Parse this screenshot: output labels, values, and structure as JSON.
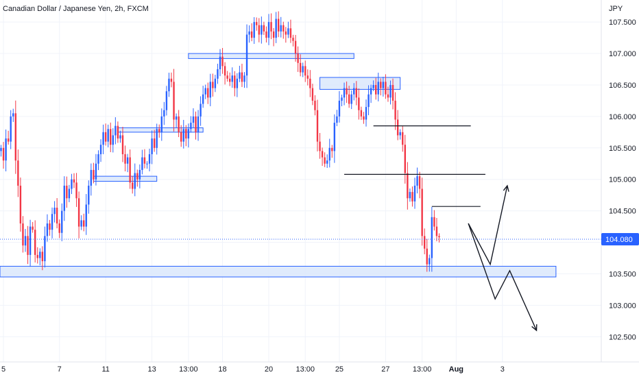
{
  "header": {
    "title": "Canadian Dollar / Japanese Yen, 2h, FXCM",
    "currency": "JPY"
  },
  "colors": {
    "up": "#2962ff",
    "down": "#f23645",
    "zone_fill": "#dbe7fb",
    "zone_stroke": "#2962ff",
    "grid": "#f0f3fa",
    "price_tag": "#2962ff",
    "drawing": "#131722"
  },
  "chart_data": {
    "type": "candlestick",
    "title": "Canadian Dollar / Japanese Yen, 2h, FXCM",
    "ylabel": "JPY",
    "ylim": [
      102.1,
      107.85
    ],
    "y_ticks": [
      "107.500",
      "107.000",
      "106.500",
      "106.000",
      "105.500",
      "105.000",
      "104.500",
      "104.000",
      "103.500",
      "103.000",
      "102.500"
    ],
    "x_ticks": [
      {
        "label": "5",
        "i": 1,
        "bold": false
      },
      {
        "label": "7",
        "i": 24,
        "bold": false
      },
      {
        "label": "11",
        "i": 43,
        "bold": false
      },
      {
        "label": "13",
        "i": 62,
        "bold": false
      },
      {
        "label": "13:00",
        "i": 77,
        "bold": false
      },
      {
        "label": "18",
        "i": 91,
        "bold": false
      },
      {
        "label": "20",
        "i": 110,
        "bold": false
      },
      {
        "label": "13:00",
        "i": 125,
        "bold": false
      },
      {
        "label": "25",
        "i": 139,
        "bold": false
      },
      {
        "label": "27",
        "i": 158,
        "bold": false
      },
      {
        "label": "13:00",
        "i": 173,
        "bold": false
      },
      {
        "label": "Aug",
        "i": 187,
        "bold": true
      },
      {
        "label": "3",
        "i": 206,
        "bold": false
      }
    ],
    "last_price": "104.080",
    "candles_close": [
      105.5,
      105.3,
      105.65,
      105.6,
      106.0,
      106.05,
      105.3,
      104.9,
      104.3,
      103.95,
      104.1,
      103.8,
      104.25,
      104.2,
      103.8,
      103.75,
      103.85,
      103.7,
      104.1,
      104.3,
      104.2,
      104.45,
      104.55,
      104.3,
      104.15,
      104.5,
      104.9,
      104.7,
      104.85,
      105.0,
      104.95,
      104.7,
      104.25,
      104.35,
      104.25,
      104.6,
      104.9,
      105.15,
      105.0,
      105.25,
      105.4,
      105.55,
      105.75,
      105.6,
      105.8,
      105.55,
      105.7,
      105.85,
      105.65,
      105.7,
      105.4,
      105.25,
      105.35,
      104.95,
      104.85,
      105.1,
      105.0,
      105.15,
      105.35,
      105.25,
      105.25,
      105.4,
      105.65,
      105.5,
      105.8,
      105.75,
      106.0,
      106.1,
      106.4,
      106.6,
      106.55,
      105.95,
      106.0,
      105.75,
      105.6,
      105.8,
      105.65,
      105.8,
      105.9,
      106.0,
      105.75,
      106.0,
      106.2,
      106.35,
      106.45,
      106.3,
      106.55,
      106.45,
      106.6,
      106.75,
      106.95,
      106.8,
      106.65,
      106.6,
      106.55,
      106.65,
      106.45,
      106.6,
      106.7,
      106.55,
      106.65,
      107.3,
      107.35,
      107.25,
      107.5,
      107.45,
      107.3,
      107.45,
      107.35,
      107.25,
      107.5,
      107.35,
      107.25,
      107.55,
      107.35,
      107.45,
      107.35,
      107.3,
      107.4,
      107.25,
      107.2,
      107.0,
      106.85,
      106.7,
      106.8,
      106.65,
      106.6,
      106.45,
      106.25,
      106.1,
      105.6,
      105.45,
      105.35,
      105.25,
      105.3,
      105.5,
      105.45,
      105.9,
      106.0,
      106.25,
      106.3,
      106.45,
      106.35,
      106.2,
      106.35,
      106.45,
      106.3,
      106.1,
      106.0,
      105.95,
      106.15,
      106.35,
      106.45,
      106.5,
      106.35,
      106.55,
      106.45,
      106.55,
      106.35,
      106.3,
      106.5,
      106.25,
      105.95,
      105.7,
      105.75,
      105.55,
      105.1,
      104.7,
      104.8,
      104.65,
      104.9,
      105.05,
      104.85,
      104.1,
      103.9,
      103.65,
      103.75,
      104.4,
      104.25,
      104.1,
      104.08
    ],
    "annotations": {
      "support_zones": [
        {
          "i0": -1,
          "i1": 228,
          "low": 103.45,
          "high": 103.62
        },
        {
          "i0": 121,
          "i1": 145,
          "low": 106.92,
          "high": 107.0
        },
        {
          "i0": 38,
          "i1": 64,
          "low": 104.97,
          "high": 105.05
        },
        {
          "i0": 48,
          "i1": 83,
          "low": 105.75,
          "high": 105.82
        },
        {
          "i0": 77,
          "i1": 122,
          "low": 106.92,
          "high": 107.0
        },
        {
          "i0": 131,
          "i1": 164,
          "low": 106.43,
          "high": 106.62
        }
      ],
      "horizontal_lines": [
        {
          "i0": 153,
          "i1": 193,
          "price": 105.85
        },
        {
          "i0": 141,
          "i1": 199,
          "price": 105.08
        },
        {
          "i0": 177,
          "i1": 197,
          "price": 104.57
        }
      ],
      "projection_paths": [
        [
          [
            192,
            104.3
          ],
          [
            201,
            103.65
          ],
          [
            208,
            104.9
          ]
        ],
        [
          [
            192,
            104.3
          ],
          [
            203,
            103.1
          ],
          [
            209,
            103.55
          ],
          [
            220,
            102.6
          ]
        ]
      ]
    }
  }
}
